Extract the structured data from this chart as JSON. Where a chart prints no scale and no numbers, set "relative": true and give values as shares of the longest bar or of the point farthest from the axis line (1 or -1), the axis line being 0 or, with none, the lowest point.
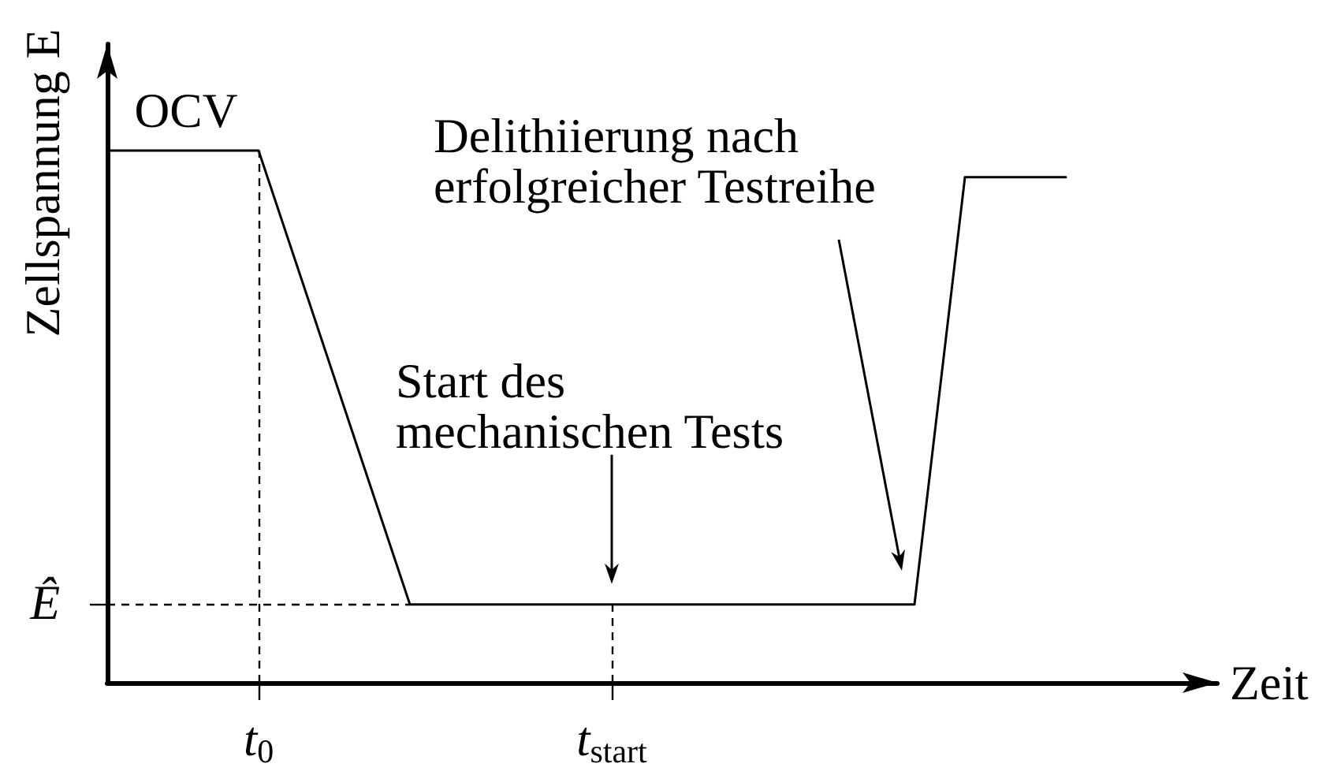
{
  "chart_data": {
    "type": "line",
    "xlabel": "Zeit",
    "ylabel": "Zellspannung E",
    "relative": true,
    "marker": "none",
    "categories": [
      null,
      null,
      null,
      "t$_{0}$",
      null,
      null,
      null,
      null,
      null,
      null,
      "t$_{start}$",
      null,
      null,
      null,
      null,
      null,
      null,
      null,
      null,
      null,
      null,
      null,
      null
    ],
    "series": [
      {
        "color": "#000000",
        "values": [
          1,
          1,
          1,
          1,
          0.716,
          0.431,
          0.147,
          0.147,
          0.147,
          0.147,
          0.147,
          0.147,
          0.147,
          0.147,
          0.147,
          0.147,
          0.147,
          0.95,
          0.95,
          0.95,
          null,
          null,
          null
        ]
      }
    ],
    "ref_lines": [
      {
        "axis": "x",
        "value": "t$_{0}$",
        "line_style": "dashed"
      },
      {
        "axis": "x",
        "value": "t$_{start}$",
        "line_style": "dashed"
      },
      {
        "axis": "y",
        "value": 0.147,
        "label": "Ê",
        "line_style": "dashed"
      }
    ],
    "annotations": [
      "OCV",
      {
        "text": "Start des mechanischen Tests",
        "x": "t$_{start}$",
        "y": 0.147
      },
      "Delithiierung nach erfolgreicher Testreihe"
    ]
  }
}
